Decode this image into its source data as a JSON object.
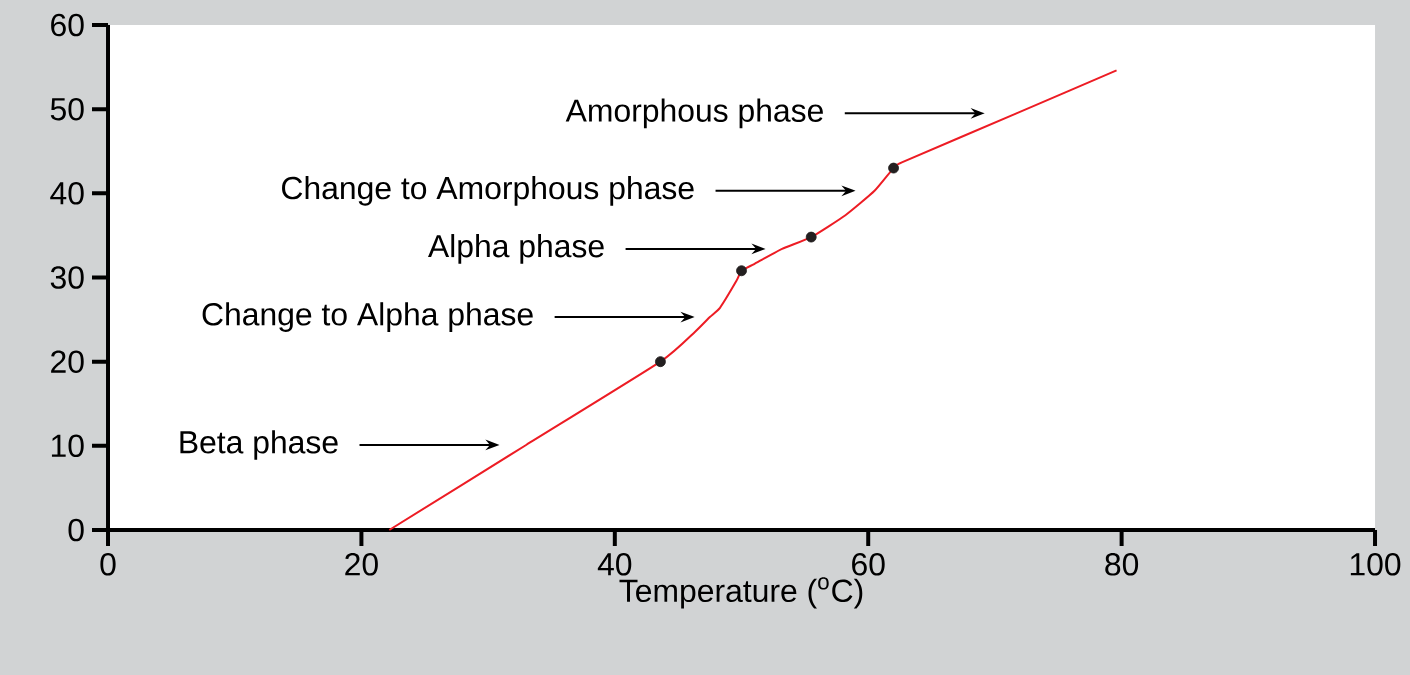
{
  "chart_data": {
    "type": "line",
    "xlabel": "Temperature ($^{o}$C)",
    "xlim": [
      0,
      100
    ],
    "xticks": [
      0,
      20,
      40,
      60,
      80,
      100
    ],
    "ylim": [
      0,
      60
    ],
    "yticks": [
      0,
      10,
      20,
      30,
      40,
      50,
      60
    ],
    "grid": false,
    "series": [
      {
        "color": "#ed1c24",
        "x": [
          22.2,
          33,
          43.6,
          46.3,
          47.5,
          48.3,
          49.6,
          50,
          51,
          53.2,
          55.5,
          58.2,
          60.5,
          62,
          62.7,
          71.7,
          79.6
        ],
        "values": [
          0,
          10.1,
          20,
          23.5,
          25.3,
          26.4,
          29.6,
          30.8,
          31.6,
          33.4,
          34.8,
          37.4,
          40.3,
          43,
          43.7,
          49.5,
          54.6
        ]
      },
      {
        "type": "scatter",
        "color": "#231f20",
        "x": [
          43.6,
          50,
          55.5,
          62
        ],
        "values": [
          20,
          30.8,
          34.8,
          43
        ]
      }
    ],
    "annotations": [
      "Beta phase",
      "Change to Alpha phase",
      "Alpha phase",
      "Change to Amorphous phase",
      "Amorphous phase"
    ]
  }
}
